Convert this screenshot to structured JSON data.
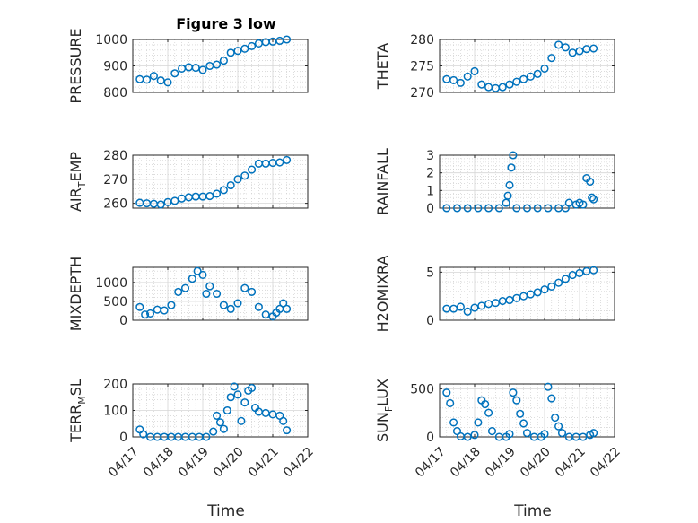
{
  "figure": {
    "title": "Figure 3 low",
    "marker_color": "#0072BD"
  },
  "x_axis": {
    "label": "Time",
    "range": [
      "04/17",
      "04/22"
    ],
    "tick_labels": [
      "04/17",
      "04/18",
      "04/19",
      "04/20",
      "04/21",
      "04/22"
    ]
  },
  "chart_data": [
    {
      "type": "scatter",
      "ylabel": "PRESSURE",
      "ylim": [
        800,
        1000
      ],
      "yticks": [
        800,
        900,
        1000
      ],
      "grid": "on",
      "show_x_tick_labels": false,
      "x_days": [
        0.2,
        0.4,
        0.6,
        0.8,
        1.0,
        1.2,
        1.4,
        1.6,
        1.8,
        2.0,
        2.2,
        2.4,
        2.6,
        2.8,
        3.0,
        3.2,
        3.4,
        3.6,
        3.8,
        4.0,
        4.2,
        4.4
      ],
      "y": [
        850,
        848,
        862,
        845,
        838,
        872,
        890,
        895,
        893,
        885,
        900,
        905,
        920,
        950,
        957,
        965,
        975,
        985,
        990,
        992,
        995,
        1000
      ]
    },
    {
      "type": "scatter",
      "ylabel": "THETA",
      "ylim": [
        270,
        280
      ],
      "yticks": [
        270,
        275,
        280
      ],
      "grid": "on",
      "show_x_tick_labels": false,
      "x_days": [
        0.2,
        0.4,
        0.6,
        0.8,
        1.0,
        1.2,
        1.4,
        1.6,
        1.8,
        2.0,
        2.2,
        2.4,
        2.6,
        2.8,
        3.0,
        3.2,
        3.4,
        3.6,
        3.8,
        4.0,
        4.2,
        4.4
      ],
      "y": [
        272.5,
        272.3,
        271.8,
        273.0,
        274.0,
        271.5,
        271.0,
        270.8,
        271.0,
        271.5,
        272.0,
        272.5,
        273.0,
        273.5,
        274.5,
        276.5,
        279.0,
        278.5,
        277.5,
        277.8,
        278.2,
        278.3
      ]
    },
    {
      "type": "scatter",
      "ylabel": "AIR",
      "ylabel_subscript": "T",
      "ylabel_suffix": "EMP",
      "ylim": [
        258,
        280
      ],
      "yticks": [
        260,
        270,
        280
      ],
      "grid": "on",
      "show_x_tick_labels": false,
      "x_days": [
        0.2,
        0.4,
        0.6,
        0.8,
        1.0,
        1.2,
        1.4,
        1.6,
        1.8,
        2.0,
        2.2,
        2.4,
        2.6,
        2.8,
        3.0,
        3.2,
        3.4,
        3.6,
        3.8,
        4.0,
        4.2,
        4.4
      ],
      "y": [
        260.2,
        260.0,
        259.8,
        259.5,
        260.5,
        261.0,
        262.0,
        262.5,
        262.8,
        262.8,
        263.0,
        264.0,
        265.5,
        267.5,
        270.0,
        271.5,
        274.0,
        276.5,
        276.5,
        276.8,
        277.0,
        278.0
      ]
    },
    {
      "type": "scatter",
      "ylabel": "RAINFALL",
      "ylim": [
        0,
        3
      ],
      "yticks": [
        0,
        1,
        2,
        3
      ],
      "grid": "on",
      "show_x_tick_labels": false,
      "x_days": [
        0.2,
        0.5,
        0.8,
        1.1,
        1.4,
        1.7,
        1.9,
        1.95,
        2.0,
        2.05,
        2.1,
        2.2,
        2.5,
        2.8,
        3.1,
        3.4,
        3.6,
        3.7,
        3.9,
        4.0,
        4.1,
        4.2,
        4.3,
        4.35,
        4.4
      ],
      "y": [
        0,
        0,
        0,
        0,
        0,
        0,
        0.3,
        0.7,
        1.3,
        2.3,
        3.0,
        0,
        0,
        0,
        0,
        0,
        0,
        0.3,
        0.2,
        0.3,
        0.2,
        1.7,
        1.5,
        0.6,
        0.5
      ]
    },
    {
      "type": "scatter",
      "ylabel": "MIXDEPTH",
      "ylim": [
        0,
        1400
      ],
      "yticks": [
        0,
        500,
        1000
      ],
      "grid": "on",
      "show_x_tick_labels": false,
      "x_days": [
        0.2,
        0.35,
        0.5,
        0.7,
        0.9,
        1.1,
        1.3,
        1.5,
        1.7,
        1.85,
        2.0,
        2.1,
        2.2,
        2.4,
        2.6,
        2.8,
        3.0,
        3.2,
        3.4,
        3.6,
        3.8,
        4.0,
        4.1,
        4.2,
        4.3,
        4.4
      ],
      "y": [
        350,
        150,
        180,
        280,
        260,
        400,
        750,
        850,
        1100,
        1300,
        1200,
        700,
        900,
        700,
        400,
        300,
        450,
        850,
        750,
        350,
        150,
        100,
        200,
        300,
        450,
        300
      ]
    },
    {
      "type": "scatter",
      "ylabel": "H2OMIXRA",
      "ylim": [
        0,
        5.5
      ],
      "yticks": [
        0,
        5
      ],
      "grid": "on",
      "show_x_tick_labels": false,
      "x_days": [
        0.2,
        0.4,
        0.6,
        0.8,
        1.0,
        1.2,
        1.4,
        1.6,
        1.8,
        2.0,
        2.2,
        2.4,
        2.6,
        2.8,
        3.0,
        3.2,
        3.4,
        3.6,
        3.8,
        4.0,
        4.2,
        4.4
      ],
      "y": [
        1.2,
        1.2,
        1.4,
        0.9,
        1.3,
        1.5,
        1.7,
        1.8,
        2.0,
        2.1,
        2.3,
        2.5,
        2.7,
        2.9,
        3.2,
        3.5,
        3.9,
        4.3,
        4.7,
        4.9,
        5.1,
        5.2
      ]
    },
    {
      "type": "scatter",
      "ylabel": "TERR",
      "ylabel_subscript": "M",
      "ylabel_suffix": "SL",
      "ylim": [
        0,
        200
      ],
      "yticks": [
        0,
        100,
        200
      ],
      "grid": "on",
      "show_x_tick_labels": true,
      "x_days": [
        0.2,
        0.3,
        0.5,
        0.7,
        0.9,
        1.1,
        1.3,
        1.5,
        1.7,
        1.9,
        2.1,
        2.3,
        2.4,
        2.5,
        2.6,
        2.7,
        2.8,
        2.9,
        3.0,
        3.1,
        3.2,
        3.3,
        3.4,
        3.5,
        3.6,
        3.8,
        4.0,
        4.2,
        4.3,
        4.4
      ],
      "y": [
        28,
        10,
        0,
        0,
        0,
        0,
        0,
        0,
        0,
        0,
        0,
        20,
        80,
        55,
        30,
        100,
        150,
        190,
        160,
        60,
        130,
        175,
        185,
        110,
        95,
        90,
        85,
        80,
        60,
        25
      ]
    },
    {
      "type": "scatter",
      "ylabel": "SUN",
      "ylabel_subscript": "F",
      "ylabel_suffix": "LUX",
      "ylim": [
        0,
        550
      ],
      "yticks": [
        0,
        500
      ],
      "grid": "on",
      "show_x_tick_labels": true,
      "x_days": [
        0.2,
        0.3,
        0.4,
        0.5,
        0.6,
        0.8,
        1.0,
        1.1,
        1.2,
        1.3,
        1.4,
        1.5,
        1.7,
        1.9,
        2.0,
        2.1,
        2.2,
        2.3,
        2.4,
        2.5,
        2.7,
        2.9,
        3.0,
        3.1,
        3.2,
        3.3,
        3.4,
        3.5,
        3.7,
        3.9,
        4.1,
        4.3,
        4.4
      ],
      "y": [
        460,
        350,
        150,
        60,
        5,
        0,
        20,
        150,
        380,
        340,
        250,
        60,
        0,
        0,
        30,
        460,
        380,
        240,
        140,
        40,
        0,
        0,
        30,
        520,
        400,
        200,
        110,
        40,
        0,
        0,
        0,
        20,
        40
      ]
    }
  ]
}
